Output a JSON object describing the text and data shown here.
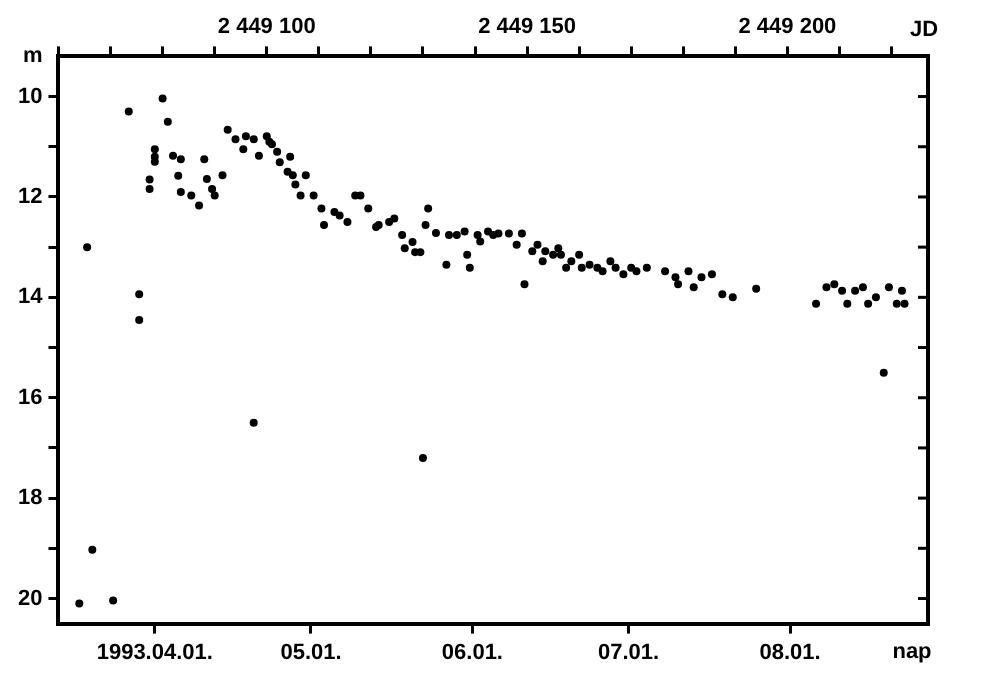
{
  "chart_data": {
    "type": "scatter",
    "xlabel": "nap",
    "ylabel": "m",
    "x2label": "JD",
    "x": [
      "1993-03-17T12:00",
      "1993-03-19T00:00",
      "1993-03-20T00:00",
      "1993-03-24T00:00",
      "1993-03-27T00:00",
      "1993-03-29T00:00",
      "1993-03-29T00:00",
      "1993-03-31T00:00",
      "1993-03-31T00:00",
      "1993-04-01T00:00",
      "1993-04-01T00:00",
      "1993-04-01T00:00",
      "1993-04-02T12:00",
      "1993-04-03T12:00",
      "1993-04-04T12:00",
      "1993-04-06T00:00",
      "1993-04-05T12:00",
      "1993-04-06T00:00",
      "1993-04-08T00:00",
      "1993-04-09T12:00",
      "1993-04-10T12:00",
      "1993-04-11T00:00",
      "1993-04-12T00:00",
      "1993-04-12T12:00",
      "1993-04-14T00:00",
      "1993-04-15T00:00",
      "1993-04-16T12:00",
      "1993-04-18T00:00",
      "1993-04-18T12:00",
      "1993-04-20T00:00",
      "1993-04-21T00:00",
      "1993-04-22T12:00",
      "1993-04-23T00:00",
      "1993-04-23T12:00",
      "1993-04-24T12:00",
      "1993-04-25T00:00",
      "1993-04-26T12:00",
      "1993-04-27T00:00",
      "1993-04-27T12:00",
      "1993-04-28T00:00",
      "1993-04-29T00:00",
      "1993-04-30T00:00",
      "1993-05-01T12:00",
      "1993-05-03T00:00",
      "1993-05-03T12:00",
      "1993-05-05T12:00",
      "1993-05-06T12:00",
      "1993-05-08T00:00",
      "1993-05-09T12:00",
      "1993-05-10T12:00",
      "1993-05-12T00:00",
      "1993-05-13T12:00",
      "1993-05-14T00:00",
      "1993-05-16T00:00",
      "1993-05-17T00:00",
      "1993-05-18T12:00",
      "1993-05-19T00:00",
      "1993-05-20T12:00",
      "1993-05-21T00:00",
      "1993-05-22T00:00",
      "1993-05-23T00:00",
      "1993-05-23T12:00",
      "1993-05-25T00:00",
      "1993-05-27T00:00",
      "1993-05-27T12:00",
      "1993-05-29T00:00",
      "1993-05-30T12:00",
      "1993-05-31T00:00",
      "1993-05-31T12:00",
      "1993-06-02T00:00",
      "1993-06-02T12:00",
      "1993-06-04T00:00",
      "1993-06-05T00:00",
      "1993-06-06T00:00",
      "1993-06-08T00:00",
      "1993-06-10T12:00",
      "1993-06-09T12:00",
      "1993-06-11T00:00",
      "1993-06-12T12:00",
      "1993-06-13T12:00",
      "1993-06-15T00:00",
      "1993-06-14T12:00",
      "1993-06-16T12:00",
      "1993-06-17T12:00",
      "1993-06-18T00:00",
      "1993-06-19T00:00",
      "1993-06-20T00:00",
      "1993-06-21T12:00",
      "1993-06-22T00:00",
      "1993-06-23T12:00",
      "1993-06-25T00:00",
      "1993-06-26T00:00",
      "1993-06-27T12:00",
      "1993-06-28T12:00",
      "1993-06-30T00:00",
      "1993-07-01T12:00",
      "1993-07-02T12:00",
      "1993-07-04T12:00",
      "1993-07-08T00:00",
      "1993-07-10T00:00",
      "1993-07-10T12:00",
      "1993-07-12T12:00",
      "1993-07-13T12:00",
      "1993-07-15T00:00",
      "1993-07-17T00:00",
      "1993-07-19T00:00",
      "1993-07-21T00:00",
      "1993-07-25T12:00",
      "1993-08-06T00:00",
      "1993-08-08T00:00",
      "1993-08-09T12:00",
      "1993-08-11T00:00",
      "1993-08-12T00:00",
      "1993-08-13T12:00",
      "1993-08-15T00:00",
      "1993-08-16T00:00",
      "1993-08-17T12:00",
      "1993-08-20T00:00",
      "1993-08-21T12:00",
      "1993-08-22T12:00",
      "1993-08-23T00:00",
      "1993-04-20T00:00",
      "1993-05-22T12:00",
      "1993-08-19T00:00"
    ],
    "values": [
      20.1,
      13.0,
      19.03,
      20.04,
      10.3,
      13.94,
      14.45,
      11.84,
      11.65,
      11.05,
      11.2,
      11.3,
      10.04,
      10.5,
      11.18,
      11.25,
      11.58,
      11.9,
      11.97,
      12.17,
      11.25,
      11.64,
      11.84,
      11.97,
      11.57,
      10.66,
      10.85,
      11.05,
      10.79,
      10.85,
      11.18,
      10.79,
      10.9,
      10.95,
      11.1,
      11.31,
      11.5,
      11.2,
      11.57,
      11.75,
      11.97,
      11.57,
      11.97,
      12.23,
      12.56,
      12.3,
      12.37,
      12.5,
      11.97,
      11.97,
      12.23,
      12.6,
      12.56,
      12.5,
      12.43,
      12.76,
      13.02,
      12.9,
      13.1,
      13.1,
      12.56,
      12.23,
      12.72,
      13.35,
      12.76,
      12.76,
      12.69,
      13.15,
      13.41,
      12.76,
      12.89,
      12.69,
      12.76,
      12.73,
      12.73,
      12.73,
      12.95,
      13.74,
      13.08,
      12.95,
      13.08,
      13.28,
      13.15,
      13.02,
      13.15,
      13.41,
      13.28,
      13.15,
      13.41,
      13.35,
      13.41,
      13.48,
      13.28,
      13.41,
      13.54,
      13.41,
      13.48,
      13.41,
      13.48,
      13.6,
      13.74,
      13.48,
      13.8,
      13.6,
      13.54,
      13.94,
      14.0,
      13.83,
      14.13,
      13.8,
      13.74,
      13.87,
      14.13,
      13.87,
      13.8,
      14.13,
      14.0,
      13.8,
      14.13,
      13.87,
      14.13,
      16.5,
      17.2,
      15.5
    ],
    "color": "#000000",
    "marker": "circle",
    "grid": false,
    "legend": false,
    "xlim": [
      "1993-03-13T12:00",
      "1993-08-27T12:00"
    ],
    "ylim": [
      20.5,
      9.2
    ],
    "xticks": [
      {
        "value": "1993-04-01",
        "label": "1993.04.01."
      },
      {
        "value": "1993-05-01",
        "label": "05.01."
      },
      {
        "value": "1993-06-01",
        "label": "06.01."
      },
      {
        "value": "1993-07-01",
        "label": "07.01."
      },
      {
        "value": "1993-08-01",
        "label": "08.01."
      }
    ],
    "x2lim": [
      2449060,
      2449227
    ],
    "x2ticks": [
      {
        "value": 2449060,
        "label": null
      },
      {
        "value": 2449070,
        "label": null
      },
      {
        "value": 2449080,
        "label": null
      },
      {
        "value": 2449090,
        "label": null
      },
      {
        "value": 2449100,
        "label": "2 449 100"
      },
      {
        "value": 2449110,
        "label": null
      },
      {
        "value": 2449120,
        "label": null
      },
      {
        "value": 2449130,
        "label": null
      },
      {
        "value": 2449140,
        "label": null
      },
      {
        "value": 2449150,
        "label": "2 449 150"
      },
      {
        "value": 2449160,
        "label": null
      },
      {
        "value": 2449170,
        "label": null
      },
      {
        "value": 2449180,
        "label": null
      },
      {
        "value": 2449190,
        "label": null
      },
      {
        "value": 2449200,
        "label": "2 449 200"
      },
      {
        "value": 2449210,
        "label": null
      },
      {
        "value": 2449220,
        "label": null
      }
    ],
    "yticks": [
      10,
      {
        "value": 11,
        "label": null
      },
      12,
      {
        "value": 13,
        "label": null
      },
      14,
      {
        "value": 15,
        "label": null
      },
      16,
      {
        "value": 17,
        "label": null
      },
      18,
      {
        "value": 19,
        "label": null
      },
      20
    ]
  }
}
